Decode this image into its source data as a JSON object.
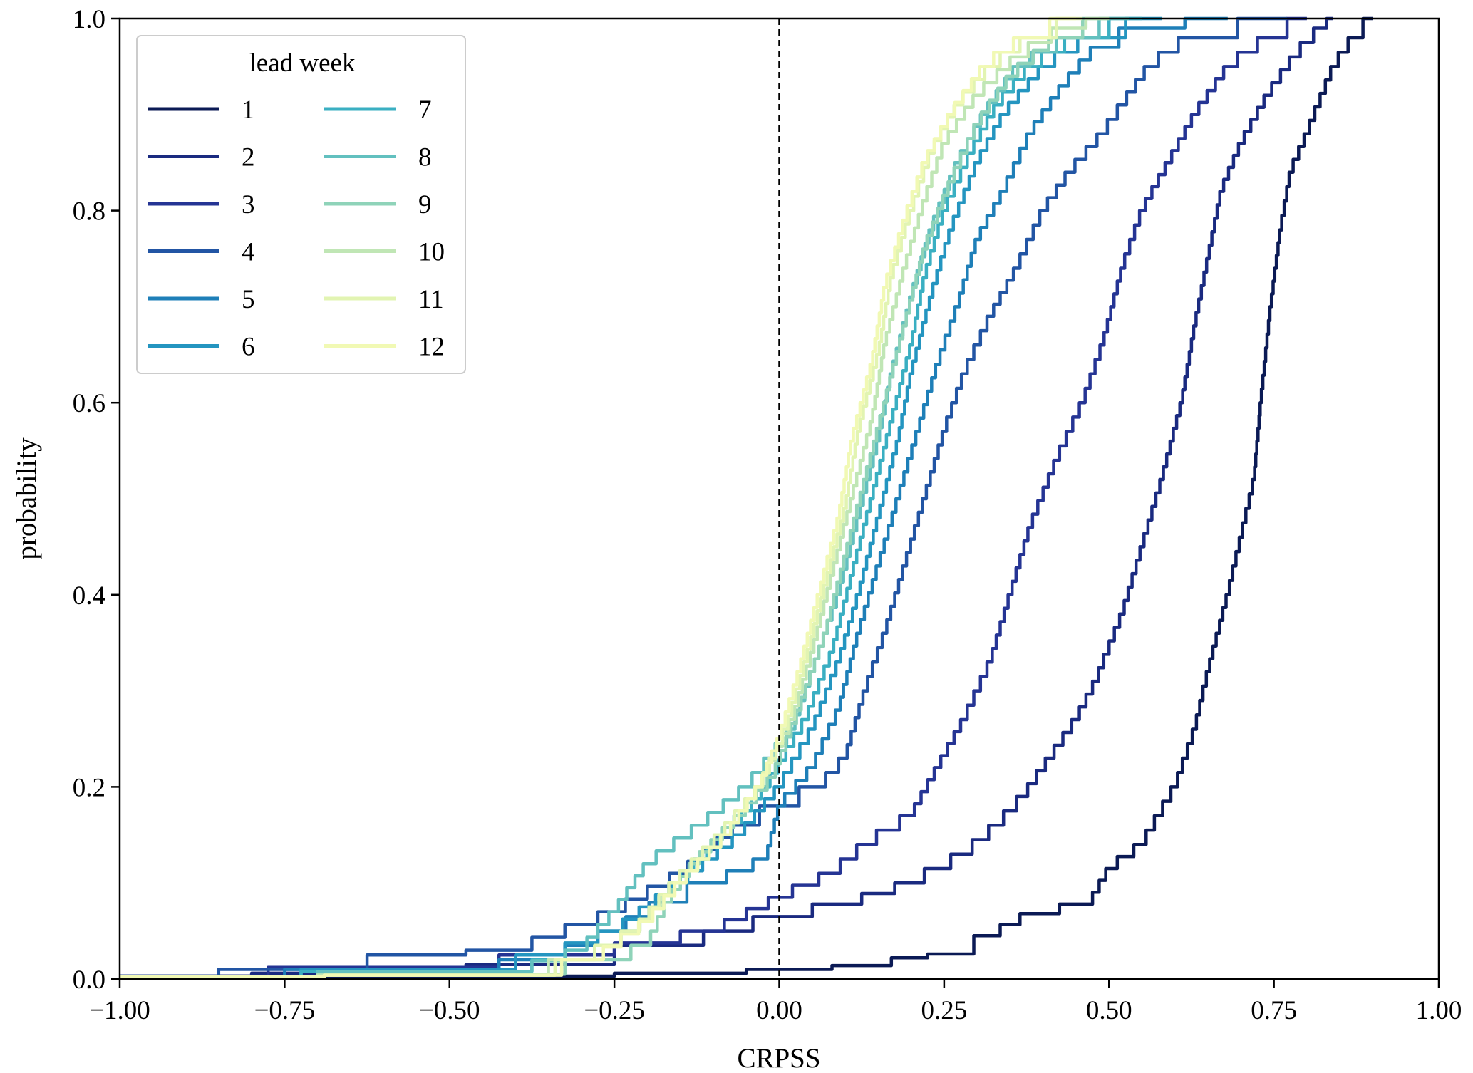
{
  "chart_data": {
    "type": "line",
    "title": "",
    "xlabel": "CRPSS",
    "ylabel": "probability",
    "xlim": [
      -1.0,
      1.0
    ],
    "ylim": [
      0.0,
      1.0
    ],
    "xticks": [
      "−1.00",
      "−0.75",
      "−0.50",
      "−0.25",
      "0.00",
      "0.25",
      "0.50",
      "0.75",
      "1.00"
    ],
    "xtick_values": [
      -1.0,
      -0.75,
      -0.5,
      -0.25,
      0.0,
      0.25,
      0.5,
      0.75,
      1.0
    ],
    "yticks": [
      "0.0",
      "0.2",
      "0.4",
      "0.6",
      "0.8",
      "1.0"
    ],
    "ytick_values": [
      0.0,
      0.2,
      0.4,
      0.6,
      0.8,
      1.0
    ],
    "reference_line": {
      "x": 0.0,
      "style": "dashed"
    },
    "legend": {
      "title": "lead week",
      "placement": "top-left",
      "columns": 2
    },
    "series": [
      {
        "name": "1",
        "color": "#0b1a55",
        "points": [
          [
            -1.0,
            0.003
          ],
          [
            -0.4,
            0.003
          ],
          [
            -0.1,
            0.006
          ],
          [
            0.0,
            0.01
          ],
          [
            0.16,
            0.014
          ],
          [
            0.18,
            0.022
          ],
          [
            0.27,
            0.026
          ],
          [
            0.32,
            0.045
          ],
          [
            0.38,
            0.068
          ],
          [
            0.47,
            0.078
          ],
          [
            0.5,
            0.115
          ],
          [
            0.55,
            0.14
          ],
          [
            0.6,
            0.2
          ],
          [
            0.63,
            0.26
          ],
          [
            0.65,
            0.32
          ],
          [
            0.68,
            0.4
          ],
          [
            0.7,
            0.46
          ],
          [
            0.72,
            0.52
          ],
          [
            0.73,
            0.6
          ],
          [
            0.745,
            0.7
          ],
          [
            0.76,
            0.78
          ],
          [
            0.775,
            0.84
          ],
          [
            0.8,
            0.88
          ],
          [
            0.84,
            0.95
          ],
          [
            0.87,
            0.98
          ],
          [
            0.9,
            1.0
          ]
        ]
      },
      {
        "name": "2",
        "color": "#1a2a80",
        "points": [
          [
            -1.0,
            0.003
          ],
          [
            -0.6,
            0.006
          ],
          [
            -0.35,
            0.015
          ],
          [
            -0.15,
            0.035
          ],
          [
            -0.08,
            0.05
          ],
          [
            0.0,
            0.065
          ],
          [
            0.1,
            0.078
          ],
          [
            0.2,
            0.1
          ],
          [
            0.28,
            0.13
          ],
          [
            0.33,
            0.16
          ],
          [
            0.37,
            0.19
          ],
          [
            0.41,
            0.23
          ],
          [
            0.45,
            0.27
          ],
          [
            0.48,
            0.31
          ],
          [
            0.52,
            0.38
          ],
          [
            0.55,
            0.45
          ],
          [
            0.58,
            0.52
          ],
          [
            0.61,
            0.6
          ],
          [
            0.63,
            0.68
          ],
          [
            0.65,
            0.75
          ],
          [
            0.67,
            0.82
          ],
          [
            0.7,
            0.87
          ],
          [
            0.74,
            0.92
          ],
          [
            0.78,
            0.96
          ],
          [
            0.82,
            0.99
          ],
          [
            0.84,
            1.0
          ]
        ]
      },
      {
        "name": "3",
        "color": "#253494",
        "points": [
          [
            -1.0,
            0.003
          ],
          [
            -0.55,
            0.012
          ],
          [
            -0.3,
            0.025
          ],
          [
            -0.1,
            0.05
          ],
          [
            0.0,
            0.085
          ],
          [
            0.08,
            0.11
          ],
          [
            0.13,
            0.14
          ],
          [
            0.2,
            0.17
          ],
          [
            0.24,
            0.22
          ],
          [
            0.28,
            0.27
          ],
          [
            0.32,
            0.33
          ],
          [
            0.35,
            0.4
          ],
          [
            0.38,
            0.47
          ],
          [
            0.42,
            0.54
          ],
          [
            0.46,
            0.6
          ],
          [
            0.49,
            0.66
          ],
          [
            0.52,
            0.74
          ],
          [
            0.55,
            0.8
          ],
          [
            0.59,
            0.85
          ],
          [
            0.63,
            0.9
          ],
          [
            0.68,
            0.95
          ],
          [
            0.74,
            0.98
          ],
          [
            0.8,
            1.0
          ]
        ]
      },
      {
        "name": "4",
        "color": "#2255a4",
        "points": [
          [
            -1.0,
            0.003
          ],
          [
            -0.7,
            0.01
          ],
          [
            -0.55,
            0.025
          ],
          [
            -0.4,
            0.03
          ],
          [
            -0.25,
            0.07
          ],
          [
            -0.15,
            0.11
          ],
          [
            -0.06,
            0.16
          ],
          [
            0.0,
            0.18
          ],
          [
            0.06,
            0.2
          ],
          [
            0.1,
            0.23
          ],
          [
            0.13,
            0.3
          ],
          [
            0.16,
            0.36
          ],
          [
            0.19,
            0.43
          ],
          [
            0.22,
            0.5
          ],
          [
            0.25,
            0.57
          ],
          [
            0.28,
            0.63
          ],
          [
            0.32,
            0.69
          ],
          [
            0.36,
            0.74
          ],
          [
            0.4,
            0.8
          ],
          [
            0.44,
            0.84
          ],
          [
            0.49,
            0.88
          ],
          [
            0.52,
            0.91
          ],
          [
            0.56,
            0.95
          ],
          [
            0.62,
            0.98
          ],
          [
            0.77,
            1.0
          ]
        ]
      },
      {
        "name": "5",
        "color": "#1e7fb8",
        "points": [
          [
            -1.0,
            0.002
          ],
          [
            -0.5,
            0.01
          ],
          [
            -0.35,
            0.02
          ],
          [
            -0.25,
            0.05
          ],
          [
            -0.18,
            0.08
          ],
          [
            -0.1,
            0.1
          ],
          [
            -0.02,
            0.125
          ],
          [
            0.0,
            0.18
          ],
          [
            0.05,
            0.22
          ],
          [
            0.09,
            0.28
          ],
          [
            0.12,
            0.36
          ],
          [
            0.15,
            0.43
          ],
          [
            0.18,
            0.5
          ],
          [
            0.21,
            0.57
          ],
          [
            0.24,
            0.64
          ],
          [
            0.27,
            0.7
          ],
          [
            0.3,
            0.77
          ],
          [
            0.34,
            0.82
          ],
          [
            0.38,
            0.88
          ],
          [
            0.43,
            0.93
          ],
          [
            0.48,
            0.97
          ],
          [
            0.55,
            0.99
          ],
          [
            0.68,
            1.0
          ]
        ]
      },
      {
        "name": "6",
        "color": "#2495c0",
        "points": [
          [
            -1.0,
            0.002
          ],
          [
            -0.45,
            0.01
          ],
          [
            -0.35,
            0.025
          ],
          [
            -0.25,
            0.05
          ],
          [
            -0.15,
            0.1
          ],
          [
            -0.06,
            0.15
          ],
          [
            0.0,
            0.2
          ],
          [
            0.05,
            0.26
          ],
          [
            0.09,
            0.33
          ],
          [
            0.12,
            0.4
          ],
          [
            0.15,
            0.48
          ],
          [
            0.18,
            0.56
          ],
          [
            0.2,
            0.63
          ],
          [
            0.23,
            0.71
          ],
          [
            0.26,
            0.78
          ],
          [
            0.3,
            0.85
          ],
          [
            0.34,
            0.9
          ],
          [
            0.4,
            0.95
          ],
          [
            0.47,
            0.98
          ],
          [
            0.58,
            1.0
          ]
        ]
      },
      {
        "name": "7",
        "color": "#3aafc2",
        "points": [
          [
            -1.0,
            0.002
          ],
          [
            -0.45,
            0.008
          ],
          [
            -0.3,
            0.02
          ],
          [
            -0.22,
            0.05
          ],
          [
            -0.16,
            0.1
          ],
          [
            -0.08,
            0.15
          ],
          [
            -0.02,
            0.2
          ],
          [
            0.04,
            0.27
          ],
          [
            0.08,
            0.34
          ],
          [
            0.11,
            0.42
          ],
          [
            0.14,
            0.5
          ],
          [
            0.17,
            0.58
          ],
          [
            0.2,
            0.66
          ],
          [
            0.22,
            0.73
          ],
          [
            0.25,
            0.8
          ],
          [
            0.29,
            0.86
          ],
          [
            0.33,
            0.91
          ],
          [
            0.38,
            0.95
          ],
          [
            0.45,
            0.98
          ],
          [
            0.55,
            1.0
          ]
        ]
      },
      {
        "name": "8",
        "color": "#62c0bf",
        "points": [
          [
            -1.0,
            0.002
          ],
          [
            -0.4,
            0.008
          ],
          [
            -0.3,
            0.03
          ],
          [
            -0.25,
            0.07
          ],
          [
            -0.2,
            0.12
          ],
          [
            -0.12,
            0.16
          ],
          [
            -0.05,
            0.2
          ],
          [
            0.02,
            0.26
          ],
          [
            0.05,
            0.32
          ],
          [
            0.09,
            0.4
          ],
          [
            0.12,
            0.48
          ],
          [
            0.15,
            0.56
          ],
          [
            0.17,
            0.63
          ],
          [
            0.2,
            0.71
          ],
          [
            0.23,
            0.78
          ],
          [
            0.27,
            0.85
          ],
          [
            0.31,
            0.9
          ],
          [
            0.36,
            0.95
          ],
          [
            0.44,
            0.98
          ],
          [
            0.53,
            1.0
          ]
        ]
      },
      {
        "name": "9",
        "color": "#8fd3b9",
        "points": [
          [
            -1.0,
            0.002
          ],
          [
            -0.4,
            0.005
          ],
          [
            -0.25,
            0.02
          ],
          [
            -0.2,
            0.035
          ],
          [
            -0.17,
            0.08
          ],
          [
            -0.13,
            0.12
          ],
          [
            -0.06,
            0.17
          ],
          [
            -0.01,
            0.21
          ],
          [
            0.03,
            0.28
          ],
          [
            0.07,
            0.36
          ],
          [
            0.1,
            0.44
          ],
          [
            0.13,
            0.52
          ],
          [
            0.16,
            0.6
          ],
          [
            0.19,
            0.68
          ],
          [
            0.22,
            0.76
          ],
          [
            0.26,
            0.83
          ],
          [
            0.3,
            0.89
          ],
          [
            0.35,
            0.94
          ],
          [
            0.42,
            0.98
          ],
          [
            0.5,
            1.0
          ]
        ]
      },
      {
        "name": "10",
        "color": "#c0e6b5",
        "points": [
          [
            -1.0,
            0.002
          ],
          [
            -0.4,
            0.004
          ],
          [
            -0.3,
            0.02
          ],
          [
            -0.22,
            0.05
          ],
          [
            -0.15,
            0.1
          ],
          [
            -0.08,
            0.15
          ],
          [
            -0.03,
            0.2
          ],
          [
            0.02,
            0.27
          ],
          [
            0.05,
            0.34
          ],
          [
            0.08,
            0.42
          ],
          [
            0.11,
            0.5
          ],
          [
            0.14,
            0.58
          ],
          [
            0.16,
            0.66
          ],
          [
            0.19,
            0.74
          ],
          [
            0.22,
            0.81
          ],
          [
            0.25,
            0.87
          ],
          [
            0.3,
            0.92
          ],
          [
            0.36,
            0.96
          ],
          [
            0.43,
            0.99
          ],
          [
            0.5,
            1.0
          ]
        ]
      },
      {
        "name": "11",
        "color": "#e2f4b2",
        "points": [
          [
            -1.0,
            0.002
          ],
          [
            -0.38,
            0.004
          ],
          [
            -0.3,
            0.02
          ],
          [
            -0.22,
            0.05
          ],
          [
            -0.16,
            0.1
          ],
          [
            -0.09,
            0.15
          ],
          [
            -0.03,
            0.2
          ],
          [
            0.01,
            0.26
          ],
          [
            0.04,
            0.33
          ],
          [
            0.07,
            0.41
          ],
          [
            0.1,
            0.49
          ],
          [
            0.12,
            0.57
          ],
          [
            0.15,
            0.65
          ],
          [
            0.17,
            0.73
          ],
          [
            0.2,
            0.8
          ],
          [
            0.23,
            0.86
          ],
          [
            0.27,
            0.91
          ],
          [
            0.32,
            0.95
          ],
          [
            0.38,
            0.98
          ],
          [
            0.46,
            1.0
          ]
        ]
      },
      {
        "name": "12",
        "color": "#f1f9b4",
        "points": [
          [
            -1.0,
            0.002
          ],
          [
            -0.38,
            0.004
          ],
          [
            -0.28,
            0.02
          ],
          [
            -0.2,
            0.06
          ],
          [
            -0.15,
            0.1
          ],
          [
            -0.08,
            0.15
          ],
          [
            -0.03,
            0.2
          ],
          [
            0.0,
            0.25
          ],
          [
            0.03,
            0.32
          ],
          [
            0.06,
            0.4
          ],
          [
            0.09,
            0.48
          ],
          [
            0.11,
            0.56
          ],
          [
            0.14,
            0.64
          ],
          [
            0.16,
            0.72
          ],
          [
            0.19,
            0.79
          ],
          [
            0.22,
            0.85
          ],
          [
            0.26,
            0.9
          ],
          [
            0.31,
            0.95
          ],
          [
            0.37,
            0.98
          ],
          [
            0.45,
            1.0
          ]
        ]
      }
    ]
  }
}
